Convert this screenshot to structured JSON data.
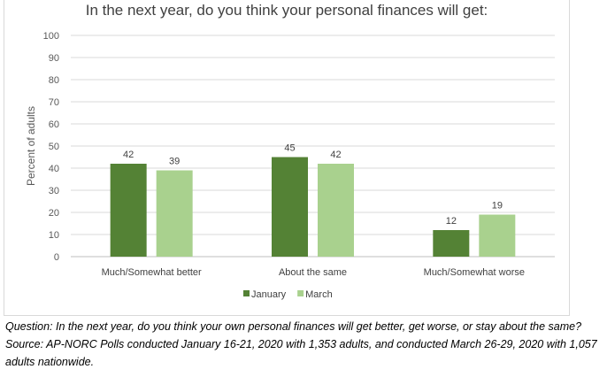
{
  "chart_data": {
    "type": "bar",
    "title": "In the next year, do you think your personal finances will get:",
    "ylabel": "Percent of adults",
    "xlabel": "",
    "ylim": [
      0,
      100
    ],
    "yticks": [
      0,
      10,
      20,
      30,
      40,
      50,
      60,
      70,
      80,
      90,
      100
    ],
    "grid": true,
    "legend_position": "bottom",
    "categories": [
      "Much/Somewhat better",
      "About the same",
      "Much/Somewhat worse"
    ],
    "series": [
      {
        "name": "January",
        "values": [
          42,
          45,
          12
        ],
        "color": "#548235"
      },
      {
        "name": "March",
        "values": [
          39,
          42,
          19
        ],
        "color": "#a9d18e"
      }
    ]
  },
  "notes": {
    "question": "Question: In the next year, do you think your own personal finances will get better, get worse, or stay about the same?",
    "source": "Source: AP-NORC Polls conducted January 16-21, 2020 with 1,353 adults, and conducted March 26-29, 2020 with 1,057 adults nationwide."
  }
}
